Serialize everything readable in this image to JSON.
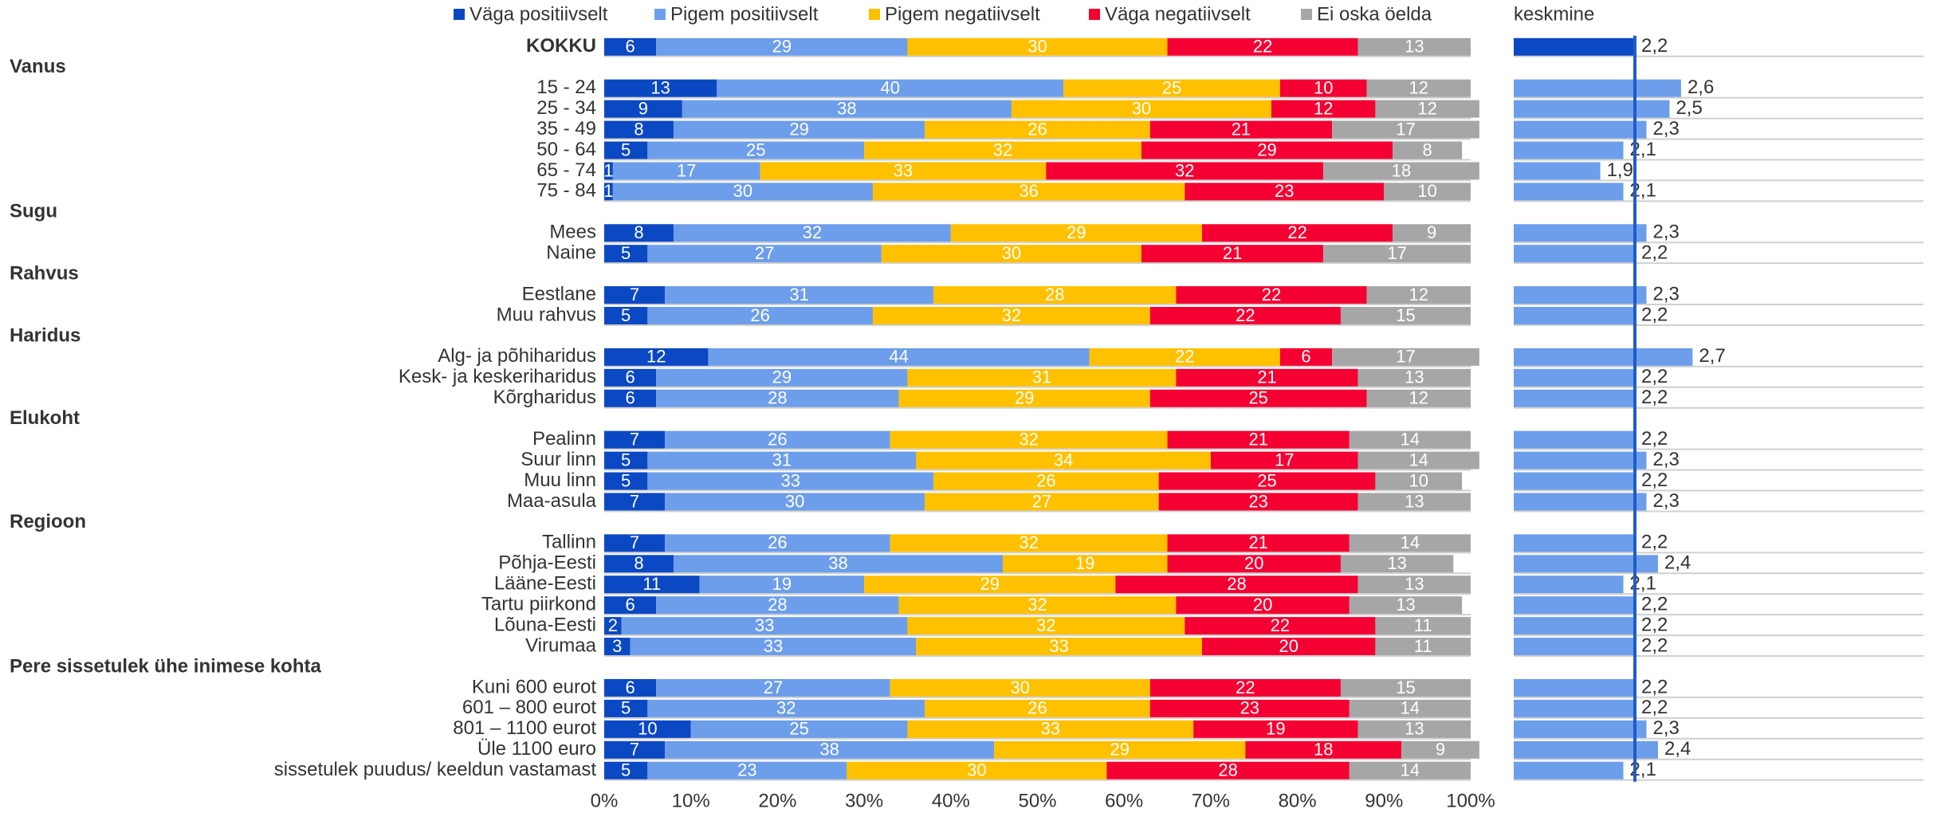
{
  "chart_data": [
    {
      "type": "stacked_bar_horizontal",
      "categories": [
        "KOKKU",
        "Vanus",
        "15 - 24",
        "25 - 34",
        "35 - 49",
        "50 - 64",
        "65 - 74",
        "75 - 84",
        "Sugu",
        "Mees",
        "Naine",
        "Rahvus",
        "Eestlane",
        "Muu rahvus",
        "Haridus",
        "Alg- ja põhiharidus",
        "Kesk- ja keskeriharidus",
        "Kõrgharidus",
        "Elukoht",
        "Pealinn",
        "Suur linn",
        "Muu linn",
        "Maa-asula",
        "Regioon",
        "Tallinn",
        "Põhja-Eesti",
        "Lääne-Eesti",
        "Tartu piirkond",
        "Lõuna-Eesti",
        "Virumaa",
        "Pere sissetulek ühe inimese kohta",
        "Kuni 600 eurot",
        "601 – 800 eurot",
        "801 – 1100 eurot",
        "Üle 1100 euro",
        "sissetulek puudus/ keeldun vastamast"
      ],
      "series": [
        {
          "name": "Väga positiivselt",
          "color": "#0b48c3",
          "values": [
            6,
            null,
            13,
            9,
            8,
            5,
            1,
            1,
            null,
            8,
            5,
            null,
            7,
            5,
            null,
            12,
            6,
            6,
            null,
            7,
            5,
            5,
            7,
            null,
            7,
            8,
            11,
            6,
            2,
            3,
            null,
            6,
            5,
            10,
            7,
            5
          ]
        },
        {
          "name": "Pigem positiivselt",
          "color": "#6d9eeb",
          "values": [
            29,
            null,
            40,
            38,
            29,
            25,
            17,
            30,
            null,
            32,
            27,
            null,
            31,
            26,
            null,
            44,
            29,
            28,
            null,
            26,
            31,
            33,
            30,
            null,
            26,
            38,
            19,
            28,
            33,
            33,
            null,
            27,
            32,
            25,
            38,
            23
          ]
        },
        {
          "name": "Pigem negatiivselt",
          "color": "#ffc000",
          "values": [
            30,
            null,
            25,
            30,
            26,
            32,
            33,
            36,
            null,
            29,
            30,
            null,
            28,
            32,
            null,
            22,
            31,
            29,
            null,
            32,
            34,
            26,
            27,
            null,
            32,
            19,
            29,
            32,
            32,
            33,
            null,
            30,
            26,
            33,
            29,
            30
          ]
        },
        {
          "name": "Väga negatiivselt",
          "color": "#f50032",
          "values": [
            22,
            null,
            10,
            12,
            21,
            29,
            32,
            23,
            null,
            22,
            21,
            null,
            22,
            22,
            null,
            6,
            21,
            25,
            null,
            21,
            17,
            25,
            23,
            null,
            21,
            20,
            28,
            20,
            22,
            20,
            null,
            22,
            23,
            19,
            18,
            28
          ]
        },
        {
          "name": "Ei oska öelda",
          "color": "#a6a6a6",
          "values": [
            13,
            null,
            12,
            12,
            17,
            8,
            18,
            10,
            null,
            9,
            17,
            null,
            12,
            15,
            null,
            17,
            13,
            12,
            null,
            14,
            14,
            10,
            13,
            null,
            14,
            13,
            13,
            13,
            11,
            11,
            null,
            15,
            14,
            13,
            9,
            14
          ]
        }
      ],
      "xlim": [
        0,
        100
      ],
      "xticks": [
        {
          "value": 0,
          "label": "0%"
        },
        {
          "value": 10,
          "label": "10%"
        },
        {
          "value": 20,
          "label": "20%"
        },
        {
          "value": 30,
          "label": "30%"
        },
        {
          "value": 40,
          "label": "40%"
        },
        {
          "value": 50,
          "label": "50%"
        },
        {
          "value": 60,
          "label": "60%"
        },
        {
          "value": 70,
          "label": "70%"
        },
        {
          "value": 80,
          "label": "80%"
        },
        {
          "value": 90,
          "label": "90%"
        },
        {
          "value": 100,
          "label": "100%"
        }
      ]
    },
    {
      "type": "mean_bar",
      "title": "keskmine",
      "values": [
        2.2,
        null,
        2.6,
        2.5,
        2.3,
        2.1,
        1.9,
        2.1,
        null,
        2.3,
        2.2,
        null,
        2.3,
        2.2,
        null,
        2.7,
        2.2,
        2.2,
        null,
        2.2,
        2.3,
        2.2,
        2.3,
        null,
        2.2,
        2.4,
        2.1,
        2.2,
        2.2,
        2.2,
        null,
        2.2,
        2.2,
        2.3,
        2.4,
        2.1
      ],
      "value_labels": [
        "2,2",
        null,
        "2,6",
        "2,5",
        "2,3",
        "2,1",
        "1,9",
        "2,1",
        null,
        "2,3",
        "2,2",
        null,
        "2,3",
        "2,2",
        null,
        "2,7",
        "2,2",
        "2,2",
        null,
        "2,2",
        "2,3",
        "2,2",
        "2,3",
        null,
        "2,2",
        "2,4",
        "2,1",
        "2,2",
        "2,2",
        "2,2",
        null,
        "2,2",
        "2,2",
        "2,3",
        "2,4",
        "2,1"
      ],
      "color": "#6d9eeb",
      "first_color": "#0b48c3",
      "line_color": "#1f5cc9",
      "xlim": [
        1.15,
        4.7
      ]
    }
  ]
}
